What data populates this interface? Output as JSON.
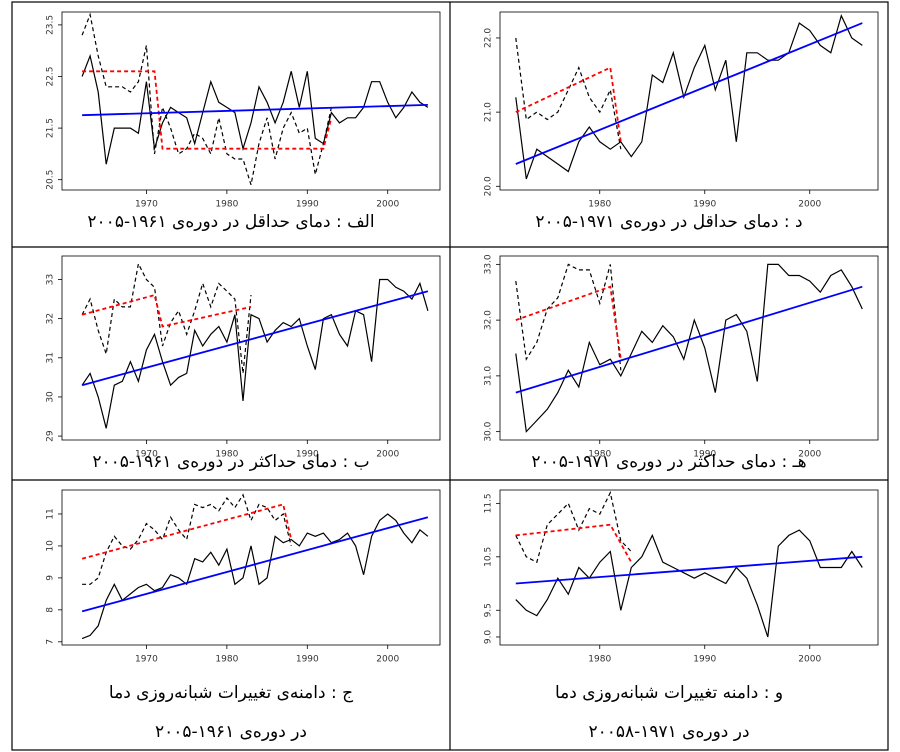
{
  "chart_data": [
    {
      "type": "line",
      "caption": [
        "الف : دمای حداقل در دوره‌ی ۱۹۶۱-۲۰۰۵"
      ],
      "xlim": [
        1959.5,
        2006.5
      ],
      "ylim": [
        20.3,
        23.75
      ],
      "xticks": [
        1970,
        1980,
        1990,
        2000
      ],
      "yticks": [
        20.5,
        21.5,
        22.5,
        23.5
      ],
      "series": [
        {
          "color": "#000000",
          "dash": false,
          "x": [
            1962,
            1963,
            1964,
            1965,
            1966,
            1967,
            1968,
            1969,
            1970,
            1971,
            1972,
            1973,
            1974,
            1975,
            1976,
            1977,
            1978,
            1979,
            1980,
            1981,
            1982,
            1983,
            1984,
            1985,
            1986,
            1987,
            1988,
            1989,
            1990,
            1991,
            1992,
            1993,
            1994,
            1995,
            1996,
            1997,
            1998,
            1999,
            2000,
            2001,
            2002,
            2003,
            2004,
            2005
          ],
          "values": [
            22.5,
            22.9,
            22.2,
            20.8,
            21.5,
            21.5,
            21.5,
            21.4,
            22.4,
            21.1,
            21.6,
            21.9,
            21.8,
            21.7,
            21.2,
            21.8,
            22.4,
            22.0,
            21.9,
            21.8,
            21.1,
            21.6,
            22.3,
            22.0,
            21.6,
            22.0,
            22.6,
            21.9,
            22.6,
            21.3,
            21.2,
            21.8,
            21.6,
            21.7,
            21.7,
            21.9,
            22.4,
            22.4,
            22.0,
            21.7,
            21.9,
            22.2,
            22.0,
            21.9
          ]
        },
        {
          "color": "#000000",
          "dash": true,
          "x": [
            1962,
            1963,
            1964,
            1965,
            1966,
            1967,
            1968,
            1969,
            1970,
            1971,
            1972,
            1973,
            1974,
            1975,
            1976,
            1977,
            1978,
            1979,
            1980,
            1981,
            1982,
            1983,
            1984,
            1985,
            1986,
            1987,
            1988,
            1989,
            1990,
            1991,
            1992,
            1993
          ],
          "values": [
            23.3,
            23.7,
            22.9,
            22.3,
            22.3,
            22.3,
            22.2,
            22.4,
            23.1,
            21.0,
            21.9,
            21.5,
            21.0,
            21.1,
            21.4,
            21.3,
            21.0,
            21.7,
            21.0,
            20.9,
            20.9,
            20.4,
            21.2,
            21.7,
            20.9,
            21.5,
            21.8,
            21.4,
            21.5,
            20.6,
            21.2,
            21.9
          ]
        },
        {
          "color": "#ff0000",
          "dash": true,
          "x": [
            1962,
            1971,
            1972,
            1992,
            1993
          ],
          "values": [
            22.6,
            22.6,
            21.1,
            21.1,
            21.7
          ]
        },
        {
          "color": "#0000ff",
          "dash": false,
          "x": [
            1962,
            2005
          ],
          "values": [
            21.75,
            21.95
          ]
        }
      ]
    },
    {
      "type": "line",
      "caption": [
        "د : دمای حداقل در دوره‌ی ۱۹۷۱-۲۰۰۵"
      ],
      "xlim": [
        1970.5,
        2006.5
      ],
      "ylim": [
        19.95,
        22.35
      ],
      "xticks": [
        1980,
        1990,
        2000
      ],
      "yticks": [
        {
          "value": 20,
          "label": "20.0"
        },
        {
          "value": 21,
          "label": "21.0"
        },
        {
          "value": 22,
          "label": "22.0"
        }
      ],
      "series": [
        {
          "color": "#000000",
          "dash": false,
          "x": [
            1972,
            1973,
            1974,
            1975,
            1976,
            1977,
            1978,
            1979,
            1980,
            1981,
            1982,
            1983,
            1984,
            1985,
            1986,
            1987,
            1988,
            1989,
            1990,
            1991,
            1992,
            1993,
            1994,
            1995,
            1996,
            1997,
            1998,
            1999,
            2000,
            2001,
            2002,
            2003,
            2004,
            2005
          ],
          "values": [
            21.2,
            20.1,
            20.5,
            20.4,
            20.3,
            20.2,
            20.6,
            20.8,
            20.6,
            20.5,
            20.6,
            20.4,
            20.6,
            21.5,
            21.4,
            21.8,
            21.2,
            21.6,
            21.9,
            21.3,
            21.7,
            20.6,
            21.8,
            21.8,
            21.7,
            21.7,
            21.8,
            22.2,
            22.1,
            21.9,
            21.8,
            22.3,
            22.0,
            21.9
          ]
        },
        {
          "color": "#000000",
          "dash": true,
          "x": [
            1972,
            1973,
            1974,
            1975,
            1976,
            1977,
            1978,
            1979,
            1980,
            1981,
            1982
          ],
          "values": [
            22.0,
            20.9,
            21.0,
            20.9,
            21.0,
            21.3,
            21.6,
            21.2,
            21.0,
            21.3,
            20.5
          ]
        },
        {
          "color": "#ff0000",
          "dash": true,
          "x": [
            1972,
            1981,
            1982
          ],
          "values": [
            21.0,
            21.6,
            20.6
          ]
        },
        {
          "color": "#0000ff",
          "dash": false,
          "x": [
            1972,
            2005
          ],
          "values": [
            20.3,
            22.2
          ]
        }
      ]
    },
    {
      "type": "line",
      "caption": [
        "ب : دمای حداکثر در دوره‌ی ۱۹۶۱-۲۰۰۵"
      ],
      "xlim": [
        1959.5,
        2006.5
      ],
      "ylim": [
        28.9,
        33.6
      ],
      "xticks": [
        1970,
        1980,
        1990,
        2000
      ],
      "yticks": [
        29,
        30,
        31,
        32,
        33
      ],
      "series": [
        {
          "color": "#000000",
          "dash": false,
          "x": [
            1962,
            1963,
            1964,
            1965,
            1966,
            1967,
            1968,
            1969,
            1970,
            1971,
            1972,
            1973,
            1974,
            1975,
            1976,
            1977,
            1978,
            1979,
            1980,
            1981,
            1982,
            1983,
            1984,
            1985,
            1986,
            1987,
            1988,
            1989,
            1990,
            1991,
            1992,
            1993,
            1994,
            1995,
            1996,
            1997,
            1998,
            1999,
            2000,
            2001,
            2002,
            2003,
            2004,
            2005
          ],
          "values": [
            30.3,
            30.6,
            30.0,
            29.2,
            30.3,
            30.4,
            30.9,
            30.4,
            31.2,
            31.6,
            30.9,
            30.3,
            30.5,
            30.6,
            31.7,
            31.3,
            31.6,
            31.8,
            31.4,
            32.1,
            29.9,
            32.1,
            32.0,
            31.4,
            31.7,
            31.9,
            31.8,
            32.0,
            31.3,
            30.7,
            32.0,
            32.1,
            31.6,
            31.3,
            32.2,
            32.1,
            30.9,
            33.0,
            33.0,
            32.8,
            32.7,
            32.5,
            32.9,
            32.2
          ]
        },
        {
          "color": "#000000",
          "dash": true,
          "x": [
            1962,
            1963,
            1964,
            1965,
            1966,
            1967,
            1968,
            1969,
            1970,
            1971,
            1972,
            1973,
            1974,
            1975,
            1976,
            1977,
            1978,
            1979,
            1980,
            1981,
            1982,
            1983
          ],
          "values": [
            32.1,
            32.5,
            31.7,
            31.1,
            32.5,
            32.3,
            32.3,
            33.4,
            33.0,
            32.8,
            31.3,
            31.9,
            32.2,
            31.6,
            32.2,
            32.9,
            32.3,
            32.9,
            32.7,
            32.5,
            30.6,
            32.6
          ]
        },
        {
          "color": "#ff0000",
          "dash": true,
          "x": [
            1962,
            1971,
            1972,
            1983
          ],
          "values": [
            32.1,
            32.6,
            31.8,
            32.3
          ]
        },
        {
          "color": "#0000ff",
          "dash": false,
          "x": [
            1962,
            2005
          ],
          "values": [
            30.3,
            32.7
          ]
        }
      ]
    },
    {
      "type": "line",
      "caption": [
        "هـ : دمای حداکثر در دوره‌ی ۱۹۷۱-۲۰۰۵"
      ],
      "xlim": [
        1970.5,
        2006.5
      ],
      "ylim": [
        29.85,
        33.15
      ],
      "xticks": [
        1980,
        1990,
        2000
      ],
      "yticks": [
        {
          "value": 30,
          "label": "30.0"
        },
        {
          "value": 31,
          "label": "31.0"
        },
        {
          "value": 32,
          "label": "32.0"
        },
        {
          "value": 33,
          "label": "33.0"
        }
      ],
      "series": [
        {
          "color": "#000000",
          "dash": false,
          "x": [
            1972,
            1973,
            1974,
            1975,
            1976,
            1977,
            1978,
            1979,
            1980,
            1981,
            1982,
            1983,
            1984,
            1985,
            1986,
            1987,
            1988,
            1989,
            1990,
            1991,
            1992,
            1993,
            1994,
            1995,
            1996,
            1997,
            1998,
            1999,
            2000,
            2001,
            2002,
            2003,
            2004,
            2005
          ],
          "values": [
            31.4,
            30.0,
            30.2,
            30.4,
            30.7,
            31.1,
            30.8,
            31.6,
            31.2,
            31.3,
            31.0,
            31.4,
            31.8,
            31.6,
            31.9,
            31.7,
            31.3,
            32.0,
            31.5,
            30.7,
            32.0,
            32.1,
            31.8,
            30.9,
            33.0,
            33.0,
            32.8,
            32.8,
            32.7,
            32.5,
            32.8,
            32.9,
            32.6,
            32.2
          ]
        },
        {
          "color": "#000000",
          "dash": true,
          "x": [
            1972,
            1973,
            1974,
            1975,
            1976,
            1977,
            1978,
            1979,
            1980,
            1981,
            1982
          ],
          "values": [
            32.7,
            31.3,
            31.6,
            32.2,
            32.4,
            33.0,
            32.9,
            32.9,
            32.3,
            33.0,
            31.1
          ]
        },
        {
          "color": "#ff0000",
          "dash": true,
          "x": [
            1972,
            1981,
            1982
          ],
          "values": [
            32.0,
            32.6,
            31.3
          ]
        },
        {
          "color": "#0000ff",
          "dash": false,
          "x": [
            1972,
            2005
          ],
          "values": [
            30.7,
            32.6
          ]
        }
      ]
    },
    {
      "type": "line",
      "caption": [
        "ج : دامنه‌ی تغییرات شبانه‌روزی دما",
        "در دوره‌ی ۱۹۶۱-۲۰۰۵"
      ],
      "xlim": [
        1959.5,
        2006.5
      ],
      "ylim": [
        6.9,
        11.75
      ],
      "xticks": [
        1970,
        1980,
        1990,
        2000
      ],
      "yticks": [
        7,
        8,
        9,
        10,
        11
      ],
      "series": [
        {
          "color": "#000000",
          "dash": false,
          "x": [
            1962,
            1963,
            1964,
            1965,
            1966,
            1967,
            1968,
            1969,
            1970,
            1971,
            1972,
            1973,
            1974,
            1975,
            1976,
            1977,
            1978,
            1979,
            1980,
            1981,
            1982,
            1983,
            1984,
            1985,
            1986,
            1987,
            1988,
            1989,
            1990,
            1991,
            1992,
            1993,
            1994,
            1995,
            1996,
            1997,
            1998,
            1999,
            2000,
            2001,
            2002,
            2003,
            2004,
            2005
          ],
          "values": [
            7.1,
            7.2,
            7.5,
            8.3,
            8.8,
            8.3,
            8.5,
            8.7,
            8.8,
            8.6,
            8.7,
            9.1,
            9.0,
            8.8,
            9.6,
            9.5,
            9.8,
            9.4,
            9.9,
            8.8,
            9.0,
            10.0,
            8.8,
            9.0,
            10.3,
            10.1,
            10.2,
            10.0,
            10.4,
            10.3,
            10.4,
            10.1,
            10.2,
            10.4,
            10.0,
            9.1,
            10.3,
            10.8,
            11.0,
            10.8,
            10.4,
            10.1,
            10.5,
            10.3
          ]
        },
        {
          "color": "#000000",
          "dash": true,
          "x": [
            1962,
            1963,
            1964,
            1965,
            1966,
            1967,
            1968,
            1969,
            1970,
            1971,
            1972,
            1973,
            1974,
            1975,
            1976,
            1977,
            1978,
            1979,
            1980,
            1981,
            1982,
            1983,
            1984,
            1985,
            1986,
            1987,
            1988
          ],
          "values": [
            8.8,
            8.8,
            9.0,
            9.8,
            10.3,
            10.0,
            9.9,
            10.2,
            10.7,
            10.5,
            10.2,
            10.9,
            10.5,
            10.2,
            11.3,
            11.2,
            11.3,
            11.1,
            11.5,
            11.2,
            11.6,
            10.8,
            11.3,
            11.2,
            10.8,
            11.0,
            10.0
          ]
        },
        {
          "color": "#ff0000",
          "dash": true,
          "x": [
            1962,
            1987,
            1988
          ],
          "values": [
            9.6,
            11.3,
            10.2
          ]
        },
        {
          "color": "#0000ff",
          "dash": false,
          "x": [
            1962,
            2005
          ],
          "values": [
            7.95,
            10.9
          ]
        }
      ]
    },
    {
      "type": "line",
      "caption": [
        "و : دامنه تغییرات شبانه‌روزی دما",
        "در دوره‌ی ۱۹۷۱-۲۰۰۵۸"
      ],
      "xlim": [
        1970.5,
        2006.5
      ],
      "ylim": [
        8.85,
        11.75
      ],
      "xticks": [
        1980,
        1990,
        2000
      ],
      "yticks": [
        {
          "value": 9,
          "label": "9.0"
        },
        9.5,
        10.5,
        11.5
      ],
      "series": [
        {
          "color": "#000000",
          "dash": false,
          "x": [
            1972,
            1973,
            1974,
            1975,
            1976,
            1977,
            1978,
            1979,
            1980,
            1981,
            1982,
            1983,
            1984,
            1985,
            1986,
            1987,
            1988,
            1989,
            1990,
            1991,
            1992,
            1993,
            1994,
            1995,
            1996,
            1997,
            1998,
            1999,
            2000,
            2001,
            2002,
            2003,
            2004,
            2005
          ],
          "values": [
            9.7,
            9.5,
            9.4,
            9.7,
            10.1,
            9.8,
            10.3,
            10.1,
            10.4,
            10.6,
            9.5,
            10.3,
            10.5,
            10.9,
            10.4,
            10.3,
            10.2,
            10.1,
            10.2,
            10.1,
            10.0,
            10.3,
            10.1,
            9.6,
            9.0,
            10.7,
            10.9,
            11.0,
            10.8,
            10.3,
            10.3,
            10.3,
            10.6,
            10.3
          ]
        },
        {
          "color": "#000000",
          "dash": true,
          "x": [
            1972,
            1973,
            1974,
            1975,
            1976,
            1977,
            1978,
            1979,
            1980,
            1981,
            1982,
            1983
          ],
          "values": [
            10.9,
            10.5,
            10.4,
            11.1,
            11.3,
            11.5,
            11.0,
            11.4,
            11.3,
            11.7,
            10.8,
            10.6
          ]
        },
        {
          "color": "#ff0000",
          "dash": true,
          "x": [
            1972,
            1981,
            1983
          ],
          "values": [
            10.9,
            11.1,
            10.4
          ]
        },
        {
          "color": "#0000ff",
          "dash": false,
          "x": [
            1972,
            2005
          ],
          "values": [
            10.0,
            10.5
          ]
        }
      ]
    }
  ]
}
